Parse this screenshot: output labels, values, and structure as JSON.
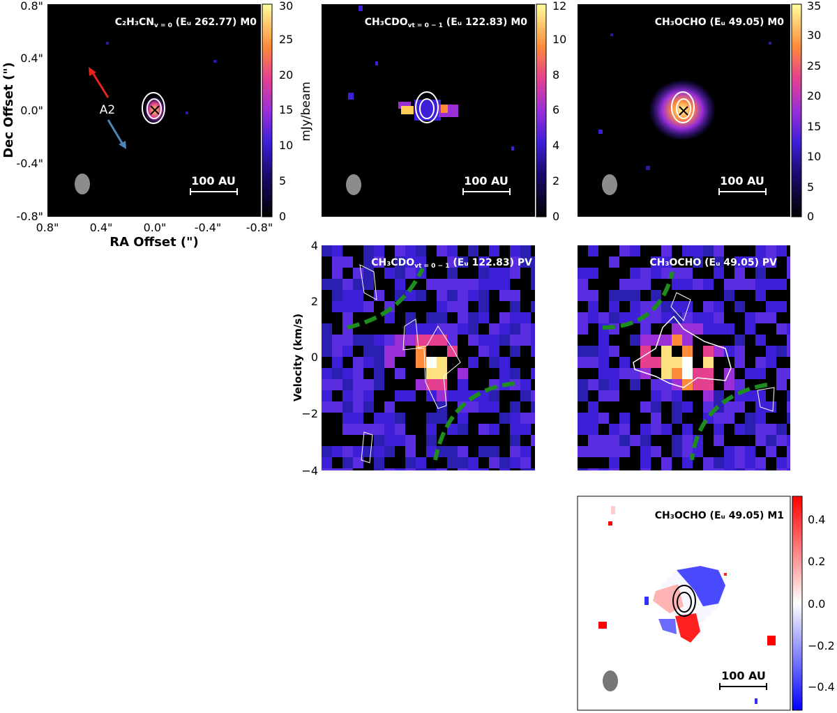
{
  "panels": {
    "m0_c2h3cn": {
      "title": "C₂H₃CN",
      "title_sub": "v = 0",
      "title_rest": " (Eᵤ 262.77) M0",
      "colorbar_ticks": [
        "0",
        "5",
        "10",
        "15",
        "20",
        "25",
        "30"
      ],
      "colorbar_label": "mJy/beam",
      "scale_bar": "100 AU",
      "source_label": "A2"
    },
    "m0_ch3cdo": {
      "title": "CH₃CDO",
      "title_sub": "vt = 0 − 1",
      "title_rest": " (Eᵤ 122.83) M0",
      "colorbar_ticks": [
        "0",
        "2",
        "4",
        "6",
        "8",
        "10",
        "12"
      ],
      "scale_bar": "100 AU"
    },
    "m0_ch3ocho": {
      "title": "CH₃OCHO (Eᵤ 49.05) M0",
      "colorbar_ticks": [
        "0",
        "5",
        "10",
        "15",
        "20",
        "25",
        "30",
        "35"
      ],
      "scale_bar": "100 AU"
    },
    "pv_ch3cdo": {
      "title": "CH₃CDO",
      "title_sub": "vt = 0 − 1",
      "title_rest": " (Eᵤ 122.83) PV"
    },
    "pv_ch3ocho": {
      "title": "CH₃OCHO (Eᵤ 49.05) PV"
    },
    "m1_ch3ocho": {
      "title": "CH₃OCHO (Eᵤ 49.05) M1",
      "colorbar_ticks": [
        "−0.4",
        "−0.2",
        "0.0",
        "0.2",
        "0.4"
      ],
      "scale_bar": "100 AU"
    }
  },
  "axes": {
    "dec_label": "Dec Offset (\")",
    "ra_label": "RA Offset (\")",
    "dec_ticks": [
      "0.8\"",
      "0.4\"",
      "0.0\"",
      "-0.4\"",
      "-0.8\""
    ],
    "ra_ticks": [
      "0.8\"",
      "0.4\"",
      "0.0\"",
      "-0.4\"",
      "-0.8\""
    ],
    "vel_label": "Velocity (km/s)",
    "vel_ticks": [
      "4",
      "2",
      "0",
      "−2",
      "−4"
    ]
  },
  "colors": {
    "background_map": "#000000",
    "pv_background": "#000000",
    "model_curve": "#1e8c1e",
    "arrow_red": "#e8231f",
    "arrow_blue": "#4f86b8",
    "beam": "#8c8c8c"
  },
  "chart_data": [
    {
      "type": "heatmap",
      "title": "C2H3CNv=0 (Eu 262.77) M0",
      "xlabel": "RA Offset (\")",
      "ylabel": "Dec Offset (\")",
      "xlim": [
        0.8,
        -0.8
      ],
      "ylim": [
        -0.8,
        0.8
      ],
      "colorbar": {
        "label": "mJy/beam",
        "range": [
          0,
          30
        ]
      },
      "peak_position": [
        0.0,
        0.0
      ]
    },
    {
      "type": "heatmap",
      "title": "CH3CDOvt=0-1 (Eu 122.83) M0",
      "colorbar": {
        "range": [
          0,
          12
        ]
      }
    },
    {
      "type": "heatmap",
      "title": "CH3OCHO (Eu 49.05) M0",
      "colorbar": {
        "range": [
          0,
          35
        ]
      },
      "peak_position": [
        0.0,
        0.0
      ]
    },
    {
      "type": "heatmap",
      "title": "CH3CDOvt=0-1 (Eu 122.83) PV",
      "ylabel": "Velocity (km/s)",
      "ylim": [
        -4,
        4
      ]
    },
    {
      "type": "heatmap",
      "title": "CH3OCHO (Eu 49.05) PV",
      "ylim": [
        -4,
        4
      ]
    },
    {
      "type": "heatmap",
      "title": "CH3OCHO (Eu 49.05) M1",
      "colorbar": {
        "range": [
          -0.5,
          0.5
        ]
      }
    }
  ]
}
